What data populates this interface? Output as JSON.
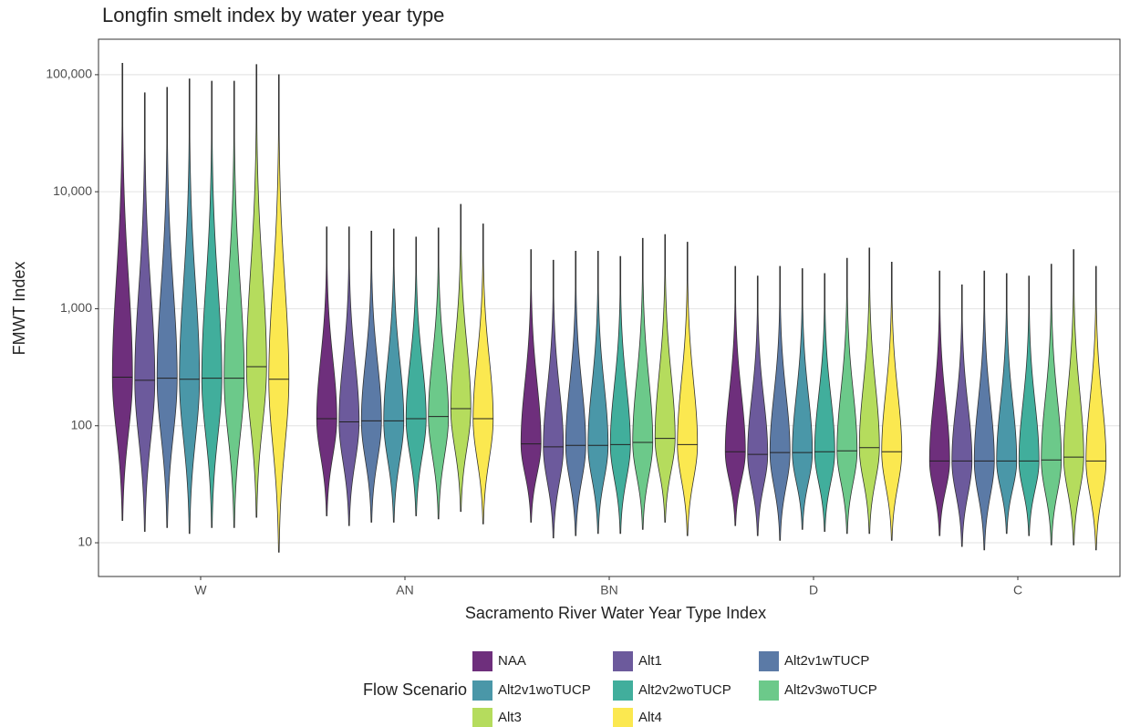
{
  "chart_data": {
    "type": "violin",
    "title": "Longfin smelt index by water year type",
    "x_label": "Sacramento River Water Year Type Index",
    "y_label": "FMWT Index",
    "legend_title": "Flow Scenario",
    "log_y": true,
    "grid": true,
    "legend_position": "bottom",
    "categories": [
      "W",
      "AN",
      "BN",
      "D",
      "C"
    ],
    "ylim": [
      5.15,
      201000
    ],
    "yticks": [
      10,
      100,
      {
        "value": 1000,
        "label": "1,000"
      },
      {
        "value": 10000,
        "label": "10,000"
      },
      {
        "value": 100000,
        "label": "100,000"
      }
    ],
    "series": [
      {
        "name": "NAA",
        "color": "#6e2f7c",
        "min": [
          15.5,
          17,
          15,
          14,
          11.5
        ],
        "median": [
          260,
          115,
          70,
          60,
          50
        ],
        "max": [
          125000,
          5000,
          3200,
          2300,
          2100
        ]
      },
      {
        "name": "Alt1",
        "color": "#6c5a9c",
        "min": [
          12.5,
          14,
          11,
          11.5,
          9.3
        ],
        "median": [
          245,
          108,
          66,
          57,
          50
        ],
        "max": [
          70000,
          5000,
          2600,
          1900,
          1600
        ]
      },
      {
        "name": "Alt2v1wTUCP",
        "color": "#5b7aa6",
        "min": [
          13.5,
          15,
          11.5,
          10.5,
          8.7
        ],
        "median": [
          255,
          110,
          68,
          59,
          50
        ],
        "max": [
          78000,
          4600,
          3100,
          2300,
          2100
        ]
      },
      {
        "name": "Alt2v1woTUCP",
        "color": "#4a97a8",
        "min": [
          12,
          15,
          12,
          13,
          12
        ],
        "median": [
          250,
          110,
          68,
          59,
          50
        ],
        "max": [
          92000,
          4800,
          3100,
          2200,
          2000
        ]
      },
      {
        "name": "Alt2v2woTUCP",
        "color": "#41ae9c",
        "min": [
          13.5,
          17,
          12,
          12.5,
          11.5
        ],
        "median": [
          255,
          115,
          69,
          60,
          50
        ],
        "max": [
          88000,
          4100,
          2800,
          2000,
          1900
        ]
      },
      {
        "name": "Alt2v3woTUCP",
        "color": "#6cc98a",
        "min": [
          13.5,
          16,
          13,
          12,
          9.6
        ],
        "median": [
          255,
          120,
          72,
          61,
          51
        ],
        "max": [
          88000,
          4900,
          4000,
          2700,
          2400
        ]
      },
      {
        "name": "Alt3",
        "color": "#b5dc5d",
        "min": [
          16.5,
          18.5,
          15,
          12,
          9.6
        ],
        "median": [
          320,
          140,
          78,
          65,
          54
        ],
        "max": [
          122000,
          7800,
          4300,
          3300,
          3200
        ]
      },
      {
        "name": "Alt4",
        "color": "#fbe850",
        "min": [
          8.3,
          14.5,
          11.5,
          10.5,
          8.7
        ],
        "median": [
          250,
          115,
          69,
          60,
          50
        ],
        "max": [
          100000,
          5300,
          3700,
          2500,
          2300
        ]
      }
    ]
  }
}
